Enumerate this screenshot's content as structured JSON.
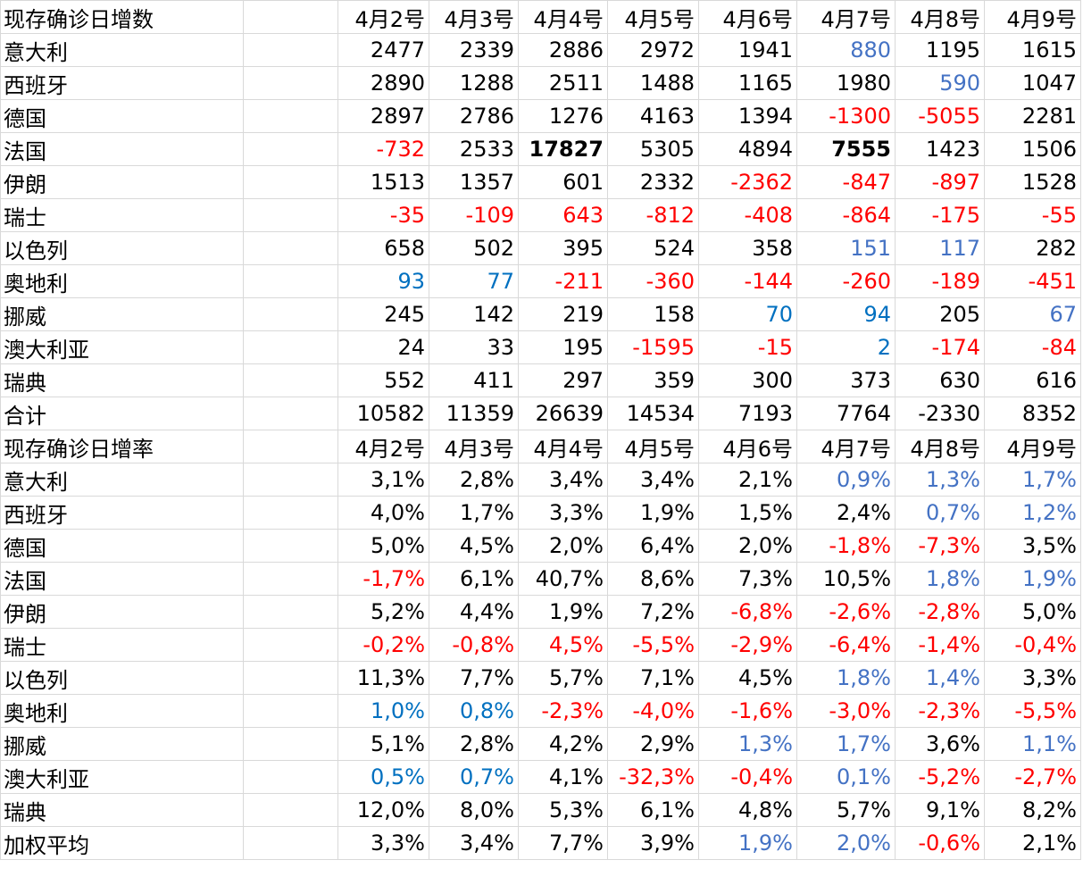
{
  "sections": [
    {
      "title": "现存确诊日增数",
      "columns": [
        "4月2号",
        "4月3号",
        "4月4号",
        "4月5号",
        "4月6号",
        "4月7号",
        "4月8号",
        "4月9号"
      ],
      "rows": [
        {
          "label": "意大利",
          "cells": [
            "2477",
            "2339",
            "2886",
            "2972",
            "1941",
            "880",
            "1195",
            "1615"
          ],
          "colors": [
            "#000000",
            "#000000",
            "#000000",
            "#000000",
            "#000000",
            "#4472c4",
            "#000000",
            "#000000"
          ]
        },
        {
          "label": "西班牙",
          "cells": [
            "2890",
            "1288",
            "2511",
            "1488",
            "1165",
            "1980",
            "590",
            "1047"
          ],
          "colors": [
            "#000000",
            "#000000",
            "#000000",
            "#000000",
            "#000000",
            "#000000",
            "#4472c4",
            "#000000"
          ]
        },
        {
          "label": "德国",
          "cells": [
            "2897",
            "2786",
            "1276",
            "4163",
            "1394",
            "-1300",
            "-5055",
            "2281"
          ],
          "colors": [
            "#000000",
            "#000000",
            "#000000",
            "#000000",
            "#000000",
            "#ff0000",
            "#ff0000",
            "#000000"
          ]
        },
        {
          "label": "法国",
          "cells": [
            "-732",
            "2533",
            "17827",
            "5305",
            "4894",
            "7555",
            "1423",
            "1506"
          ],
          "colors": [
            "#ff0000",
            "#000000",
            "#000000",
            "#000000",
            "#000000",
            "#000000",
            "#000000",
            "#000000"
          ],
          "bold": [
            false,
            false,
            true,
            false,
            false,
            true,
            false,
            false
          ]
        },
        {
          "label": "伊朗",
          "cells": [
            "1513",
            "1357",
            "601",
            "2332",
            "-2362",
            "-847",
            "-897",
            "1528"
          ],
          "colors": [
            "#000000",
            "#000000",
            "#000000",
            "#000000",
            "#ff0000",
            "#ff0000",
            "#ff0000",
            "#000000"
          ]
        },
        {
          "label": "瑞士",
          "cells": [
            "-35",
            "-109",
            "643",
            "-812",
            "-408",
            "-864",
            "-175",
            "-55"
          ],
          "colors": [
            "#ff0000",
            "#ff0000",
            "#ff0000",
            "#ff0000",
            "#ff0000",
            "#ff0000",
            "#ff0000",
            "#ff0000"
          ]
        },
        {
          "label": "以色列",
          "cells": [
            "658",
            "502",
            "395",
            "524",
            "358",
            "151",
            "117",
            "282"
          ],
          "colors": [
            "#000000",
            "#000000",
            "#000000",
            "#000000",
            "#000000",
            "#4472c4",
            "#4472c4",
            "#000000"
          ]
        },
        {
          "label": "奥地利",
          "cells": [
            "93",
            "77",
            "-211",
            "-360",
            "-144",
            "-260",
            "-189",
            "-451"
          ],
          "colors": [
            "#0070c0",
            "#0070c0",
            "#ff0000",
            "#ff0000",
            "#ff0000",
            "#ff0000",
            "#ff0000",
            "#ff0000"
          ]
        },
        {
          "label": "挪威",
          "cells": [
            "245",
            "142",
            "219",
            "158",
            "70",
            "94",
            "205",
            "67"
          ],
          "colors": [
            "#000000",
            "#000000",
            "#000000",
            "#000000",
            "#0070c0",
            "#0070c0",
            "#000000",
            "#4472c4"
          ]
        },
        {
          "label": "澳大利亚",
          "cells": [
            "24",
            "33",
            "195",
            "-1595",
            "-15",
            "2",
            "-174",
            "-84"
          ],
          "colors": [
            "#000000",
            "#000000",
            "#000000",
            "#ff0000",
            "#ff0000",
            "#0070c0",
            "#ff0000",
            "#ff0000"
          ]
        },
        {
          "label": "瑞典",
          "cells": [
            "552",
            "411",
            "297",
            "359",
            "300",
            "373",
            "630",
            "616"
          ],
          "colors": [
            "#000000",
            "#000000",
            "#000000",
            "#000000",
            "#000000",
            "#000000",
            "#000000",
            "#000000"
          ]
        },
        {
          "label": "合计",
          "cells": [
            "10582",
            "11359",
            "26639",
            "14534",
            "7193",
            "7764",
            "-2330",
            "8352"
          ],
          "colors": [
            "#000000",
            "#000000",
            "#000000",
            "#000000",
            "#000000",
            "#000000",
            "#000000",
            "#000000"
          ]
        }
      ]
    },
    {
      "title": "现存确诊日增率",
      "columns": [
        "4月2号",
        "4月3号",
        "4月4号",
        "4月5号",
        "4月6号",
        "4月7号",
        "4月8号",
        "4月9号"
      ],
      "rows": [
        {
          "label": "意大利",
          "cells": [
            "3,1%",
            "2,8%",
            "3,4%",
            "3,4%",
            "2,1%",
            "0,9%",
            "1,3%",
            "1,7%"
          ],
          "colors": [
            "#000000",
            "#000000",
            "#000000",
            "#000000",
            "#000000",
            "#4472c4",
            "#4472c4",
            "#4472c4"
          ]
        },
        {
          "label": "西班牙",
          "cells": [
            "4,0%",
            "1,7%",
            "3,3%",
            "1,9%",
            "1,5%",
            "2,4%",
            "0,7%",
            "1,2%"
          ],
          "colors": [
            "#000000",
            "#000000",
            "#000000",
            "#000000",
            "#000000",
            "#000000",
            "#4472c4",
            "#4472c4"
          ]
        },
        {
          "label": "德国",
          "cells": [
            "5,0%",
            "4,5%",
            "2,0%",
            "6,4%",
            "2,0%",
            "-1,8%",
            "-7,3%",
            "3,5%"
          ],
          "colors": [
            "#000000",
            "#000000",
            "#000000",
            "#000000",
            "#000000",
            "#ff0000",
            "#ff0000",
            "#000000"
          ]
        },
        {
          "label": "法国",
          "cells": [
            "-1,7%",
            "6,1%",
            "40,7%",
            "8,6%",
            "7,3%",
            "10,5%",
            "1,8%",
            "1,9%"
          ],
          "colors": [
            "#ff0000",
            "#000000",
            "#000000",
            "#000000",
            "#000000",
            "#000000",
            "#4472c4",
            "#4472c4"
          ]
        },
        {
          "label": "伊朗",
          "cells": [
            "5,2%",
            "4,4%",
            "1,9%",
            "7,2%",
            "-6,8%",
            "-2,6%",
            "-2,8%",
            "5,0%"
          ],
          "colors": [
            "#000000",
            "#000000",
            "#000000",
            "#000000",
            "#ff0000",
            "#ff0000",
            "#ff0000",
            "#000000"
          ]
        },
        {
          "label": "瑞士",
          "cells": [
            "-0,2%",
            "-0,8%",
            "4,5%",
            "-5,5%",
            "-2,9%",
            "-6,4%",
            "-1,4%",
            "-0,4%"
          ],
          "colors": [
            "#ff0000",
            "#ff0000",
            "#ff0000",
            "#ff0000",
            "#ff0000",
            "#ff0000",
            "#ff0000",
            "#ff0000"
          ]
        },
        {
          "label": "以色列",
          "cells": [
            "11,3%",
            "7,7%",
            "5,7%",
            "7,1%",
            "4,5%",
            "1,8%",
            "1,4%",
            "3,3%"
          ],
          "colors": [
            "#000000",
            "#000000",
            "#000000",
            "#000000",
            "#000000",
            "#4472c4",
            "#4472c4",
            "#000000"
          ]
        },
        {
          "label": "奥地利",
          "cells": [
            "1,0%",
            "0,8%",
            "-2,3%",
            "-4,0%",
            "-1,6%",
            "-3,0%",
            "-2,3%",
            "-5,5%"
          ],
          "colors": [
            "#0070c0",
            "#0070c0",
            "#ff0000",
            "#ff0000",
            "#ff0000",
            "#ff0000",
            "#ff0000",
            "#ff0000"
          ]
        },
        {
          "label": "挪威",
          "cells": [
            "5,1%",
            "2,8%",
            "4,2%",
            "2,9%",
            "1,3%",
            "1,7%",
            "3,6%",
            "1,1%"
          ],
          "colors": [
            "#000000",
            "#000000",
            "#000000",
            "#000000",
            "#4472c4",
            "#4472c4",
            "#000000",
            "#4472c4"
          ]
        },
        {
          "label": "澳大利亚",
          "cells": [
            "0,5%",
            "0,7%",
            "4,1%",
            "-32,3%",
            "-0,4%",
            "0,1%",
            "-5,2%",
            "-2,7%"
          ],
          "colors": [
            "#0070c0",
            "#0070c0",
            "#000000",
            "#ff0000",
            "#ff0000",
            "#4472c4",
            "#ff0000",
            "#ff0000"
          ]
        },
        {
          "label": "瑞典",
          "cells": [
            "12,0%",
            "8,0%",
            "5,3%",
            "6,1%",
            "4,8%",
            "5,7%",
            "9,1%",
            "8,2%"
          ],
          "colors": [
            "#000000",
            "#000000",
            "#000000",
            "#000000",
            "#000000",
            "#000000",
            "#000000",
            "#000000"
          ]
        },
        {
          "label": "加权平均",
          "cells": [
            "3,3%",
            "3,4%",
            "7,7%",
            "3,9%",
            "1,9%",
            "2,0%",
            "-0,6%",
            "2,1%"
          ],
          "colors": [
            "#000000",
            "#000000",
            "#000000",
            "#000000",
            "#4472c4",
            "#4472c4",
            "#ff0000",
            "#000000"
          ]
        }
      ]
    }
  ]
}
